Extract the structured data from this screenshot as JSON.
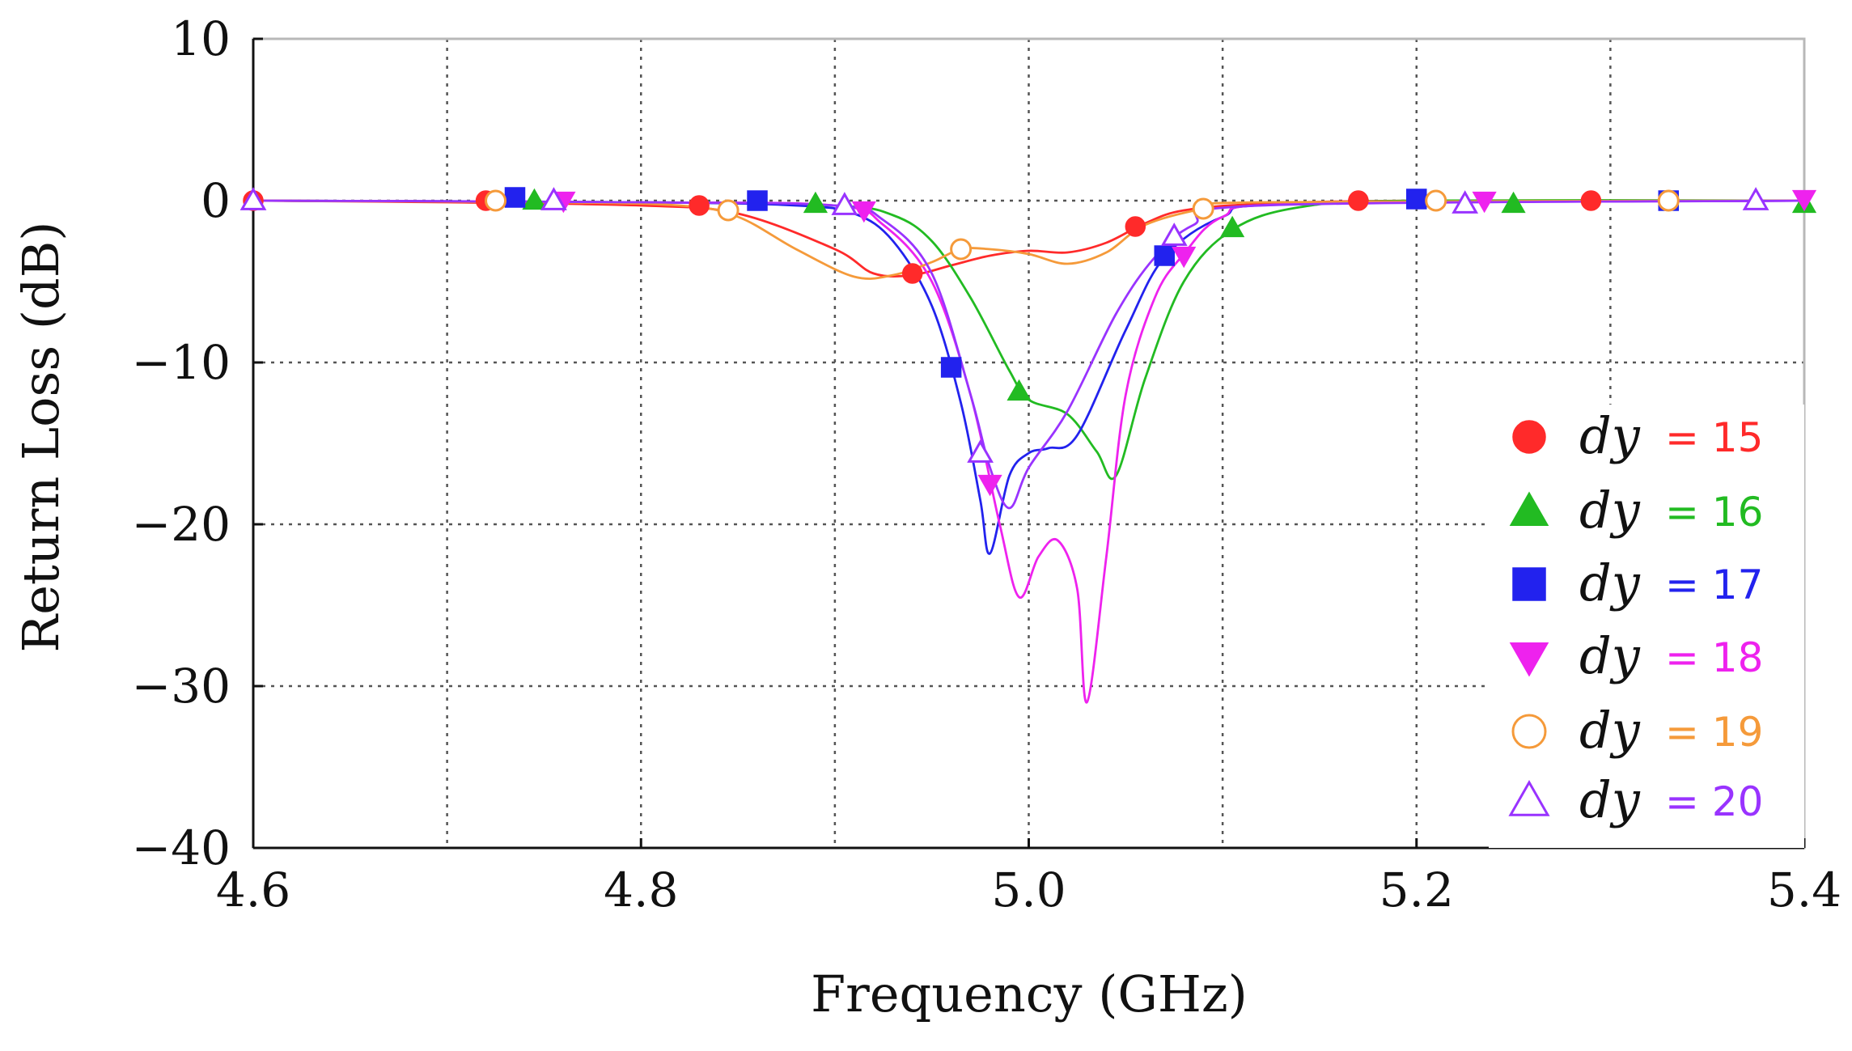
{
  "chart_data": {
    "type": "line",
    "title": "",
    "xlabel": "Frequency (GHz)",
    "ylabel": "Return Loss (dB)",
    "xlim": [
      4.6,
      5.4
    ],
    "ylim": [
      -40,
      10
    ],
    "grid": true,
    "legend_position": "bottom-right",
    "x_ticks": [
      {
        "value": 4.6,
        "label": "4.6"
      },
      {
        "value": 4.8,
        "label": "4.8"
      },
      {
        "value": 5.0,
        "label": "5.0"
      },
      {
        "value": 5.2,
        "label": "5.2"
      },
      {
        "value": 5.4,
        "label": "5.4"
      }
    ],
    "y_ticks": [
      {
        "value": 10,
        "label": "10"
      },
      {
        "value": 0,
        "label": "0"
      },
      {
        "value": -10,
        "label": "−10"
      },
      {
        "value": -20,
        "label": "−20"
      },
      {
        "value": -30,
        "label": "−30"
      },
      {
        "value": -40,
        "label": "−40"
      }
    ],
    "series": [
      {
        "name": "dy = 15",
        "legend_var": "dy",
        "legend_value": "= 15",
        "color": "#ff2a2a",
        "marker": "circle",
        "filled": true,
        "curve": [
          [
            4.6,
            0
          ],
          [
            4.7,
            -0.1
          ],
          [
            4.8,
            -0.3
          ],
          [
            4.85,
            -0.8
          ],
          [
            4.9,
            -3.0
          ],
          [
            4.92,
            -4.5
          ],
          [
            4.94,
            -4.6
          ],
          [
            4.96,
            -4.0
          ],
          [
            4.98,
            -3.4
          ],
          [
            5.0,
            -3.1
          ],
          [
            5.02,
            -3.2
          ],
          [
            5.04,
            -2.6
          ],
          [
            5.06,
            -1.4
          ],
          [
            5.08,
            -0.6
          ],
          [
            5.12,
            -0.2
          ],
          [
            5.2,
            0
          ],
          [
            5.4,
            0
          ]
        ],
        "markers": [
          [
            4.6,
            0
          ],
          [
            4.72,
            0
          ],
          [
            4.83,
            -0.3
          ],
          [
            4.94,
            -4.5
          ],
          [
            5.055,
            -1.6
          ],
          [
            5.17,
            0
          ],
          [
            5.29,
            0
          ]
        ]
      },
      {
        "name": "dy = 16",
        "legend_var": "dy",
        "legend_value": "= 16",
        "color": "#22bb22",
        "marker": "triangle-up",
        "filled": true,
        "curve": [
          [
            4.6,
            0
          ],
          [
            4.8,
            -0.1
          ],
          [
            4.9,
            -0.3
          ],
          [
            4.93,
            -0.9
          ],
          [
            4.95,
            -2.5
          ],
          [
            4.97,
            -6.0
          ],
          [
            4.99,
            -10.5
          ],
          [
            5.0,
            -12.3
          ],
          [
            5.02,
            -13.2
          ],
          [
            5.035,
            -15.5
          ],
          [
            5.045,
            -17.0
          ],
          [
            5.06,
            -11.0
          ],
          [
            5.08,
            -5.0
          ],
          [
            5.105,
            -1.8
          ],
          [
            5.14,
            -0.4
          ],
          [
            5.2,
            0
          ],
          [
            5.4,
            0
          ]
        ],
        "markers": [
          [
            4.745,
            0
          ],
          [
            4.89,
            -0.2
          ],
          [
            4.995,
            -11.8
          ],
          [
            5.105,
            -1.7
          ],
          [
            5.25,
            -0.2
          ],
          [
            5.4,
            -0.2
          ]
        ]
      },
      {
        "name": "dy = 17",
        "legend_var": "dy",
        "legend_value": "= 17",
        "color": "#2222ee",
        "marker": "square",
        "filled": true,
        "curve": [
          [
            4.6,
            0
          ],
          [
            4.8,
            -0.1
          ],
          [
            4.88,
            -0.3
          ],
          [
            4.91,
            -0.8
          ],
          [
            4.93,
            -2.5
          ],
          [
            4.95,
            -6.5
          ],
          [
            4.965,
            -12.5
          ],
          [
            4.975,
            -18.5
          ],
          [
            4.98,
            -21.8
          ],
          [
            4.99,
            -17.0
          ],
          [
            5.0,
            -15.6
          ],
          [
            5.01,
            -15.3
          ],
          [
            5.025,
            -14.5
          ],
          [
            5.05,
            -8.0
          ],
          [
            5.07,
            -3.5
          ],
          [
            5.1,
            -1.0
          ],
          [
            5.14,
            -0.2
          ],
          [
            5.4,
            0
          ]
        ],
        "markers": [
          [
            4.735,
            0.2
          ],
          [
            4.86,
            0
          ],
          [
            4.96,
            -10.3
          ],
          [
            5.07,
            -3.4
          ],
          [
            5.2,
            0.1
          ],
          [
            5.33,
            0
          ]
        ]
      },
      {
        "name": "dy = 18",
        "legend_var": "dy",
        "legend_value": "= 18",
        "color": "#ee22ee",
        "marker": "triangle-down",
        "filled": true,
        "curve": [
          [
            4.6,
            0
          ],
          [
            4.8,
            -0.1
          ],
          [
            4.9,
            -0.3
          ],
          [
            4.925,
            -1.5
          ],
          [
            4.95,
            -5.0
          ],
          [
            4.97,
            -12.0
          ],
          [
            4.985,
            -20.0
          ],
          [
            4.995,
            -24.5
          ],
          [
            5.005,
            -22.0
          ],
          [
            5.015,
            -21.0
          ],
          [
            5.025,
            -24.0
          ],
          [
            5.03,
            -31.0
          ],
          [
            5.04,
            -22.0
          ],
          [
            5.05,
            -12.0
          ],
          [
            5.065,
            -6.0
          ],
          [
            5.08,
            -3.3
          ],
          [
            5.1,
            -1.0
          ],
          [
            5.14,
            -0.2
          ],
          [
            5.4,
            0
          ]
        ],
        "markers": [
          [
            4.76,
            0
          ],
          [
            4.915,
            -0.6
          ],
          [
            4.98,
            -17.5
          ],
          [
            5.08,
            -3.4
          ],
          [
            5.235,
            0
          ],
          [
            5.4,
            0.1
          ]
        ]
      },
      {
        "name": "dy = 19",
        "legend_var": "dy",
        "legend_value": "= 19",
        "color": "#f59a3a",
        "marker": "circle",
        "filled": false,
        "curve": [
          [
            4.6,
            0
          ],
          [
            4.75,
            -0.1
          ],
          [
            4.82,
            -0.3
          ],
          [
            4.85,
            -1.0
          ],
          [
            4.88,
            -3.0
          ],
          [
            4.91,
            -4.7
          ],
          [
            4.93,
            -4.6
          ],
          [
            4.95,
            -3.8
          ],
          [
            4.965,
            -3.0
          ],
          [
            4.98,
            -3.0
          ],
          [
            5.0,
            -3.3
          ],
          [
            5.02,
            -3.9
          ],
          [
            5.04,
            -3.2
          ],
          [
            5.06,
            -1.5
          ],
          [
            5.09,
            -0.5
          ],
          [
            5.12,
            -0.1
          ],
          [
            5.4,
            0
          ]
        ],
        "markers": [
          [
            4.725,
            0
          ],
          [
            4.845,
            -0.6
          ],
          [
            4.965,
            -3.0
          ],
          [
            5.09,
            -0.5
          ],
          [
            5.21,
            0
          ],
          [
            5.33,
            0
          ]
        ]
      },
      {
        "name": "dy = 20",
        "legend_var": "dy",
        "legend_value": "= 20",
        "color": "#9933ff",
        "marker": "triangle-up",
        "filled": false,
        "curve": [
          [
            4.6,
            0
          ],
          [
            4.8,
            -0.1
          ],
          [
            4.9,
            -0.3
          ],
          [
            4.925,
            -1.2
          ],
          [
            4.95,
            -4.5
          ],
          [
            4.97,
            -12.0
          ],
          [
            4.98,
            -16.5
          ],
          [
            4.99,
            -19.0
          ],
          [
            5.0,
            -16.5
          ],
          [
            5.02,
            -13.0
          ],
          [
            5.045,
            -7.0
          ],
          [
            5.065,
            -3.5
          ],
          [
            5.085,
            -1.5
          ],
          [
            5.12,
            -0.3
          ],
          [
            5.4,
            0
          ]
        ],
        "markers": [
          [
            4.6,
            0
          ],
          [
            4.755,
            0
          ],
          [
            4.905,
            -0.3
          ],
          [
            4.975,
            -15.6
          ],
          [
            5.075,
            -2.2
          ],
          [
            5.225,
            -0.2
          ],
          [
            5.375,
            0
          ]
        ]
      }
    ]
  }
}
